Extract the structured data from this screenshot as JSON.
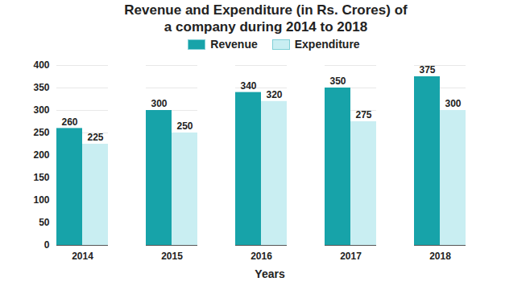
{
  "chart_data": {
    "type": "bar",
    "title": "Revenue and Expenditure (in Rs. Crores) of a company during 2014 to 2018",
    "x_label": "Years",
    "categories": [
      "2014",
      "2015",
      "2016",
      "2017",
      "2018"
    ],
    "series": [
      {
        "name": "Revenue",
        "color": "#17a3a9",
        "values": [
          260,
          300,
          340,
          350,
          375
        ]
      },
      {
        "name": "Expenditure",
        "color": "#c9eef2",
        "values": [
          225,
          250,
          320,
          275,
          300
        ]
      }
    ],
    "ylim": [
      0,
      400
    ],
    "yticks": [
      0,
      50,
      100,
      150,
      200,
      250,
      300,
      350,
      400
    ],
    "grid": true,
    "legend": "top",
    "data_labels": true
  }
}
